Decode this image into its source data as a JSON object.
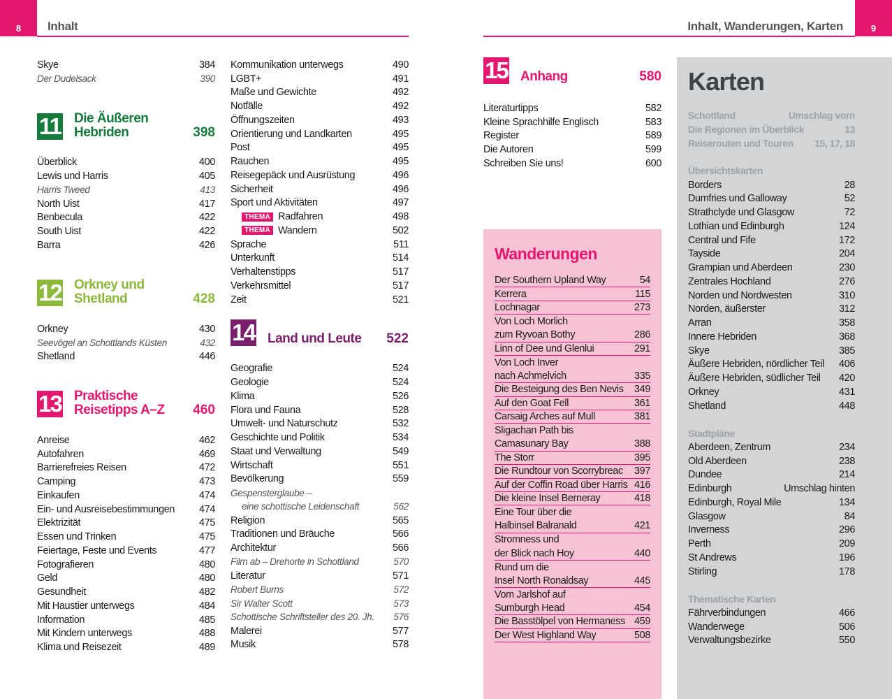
{
  "header": {
    "left_page": "8",
    "left_title": "Inhalt",
    "right_title": "Inhalt, Wanderungen, Karten",
    "right_page": "9"
  },
  "columns": [
    {
      "blocks": [
        {
          "items": [
            {
              "text": "Skye",
              "page": "384"
            },
            {
              "text": "Der Dudelsack",
              "page": "390",
              "italic": true
            }
          ]
        },
        {
          "number": "11",
          "title": [
            "Die Äußeren",
            "Hebriden"
          ],
          "page": "398",
          "color": "#157a3c"
        },
        {
          "items": [
            {
              "text": "Überblick",
              "page": "400"
            },
            {
              "text": "Lewis und Harris",
              "page": "405"
            },
            {
              "text": "Harris Tweed",
              "page": "413",
              "italic": true
            },
            {
              "text": "North Uist",
              "page": "417"
            },
            {
              "text": "Benbecula",
              "page": "422"
            },
            {
              "text": "South Uist",
              "page": "422"
            },
            {
              "text": "Barra",
              "page": "426"
            }
          ]
        },
        {
          "number": "12",
          "title": [
            "Orkney und",
            "Shetland"
          ],
          "page": "428",
          "color": "#8cb83c"
        },
        {
          "items": [
            {
              "text": "Orkney",
              "page": "430"
            },
            {
              "text": "Seevögel an Schottlands Küsten",
              "page": "432",
              "italic": true
            },
            {
              "text": "Shetland",
              "page": "446"
            }
          ]
        },
        {
          "number": "13",
          "title": [
            "Praktische",
            "Reisetipps A–Z"
          ],
          "page": "460",
          "color": "#e3176d"
        },
        {
          "items": [
            {
              "text": "Anreise",
              "page": "462"
            },
            {
              "text": "Autofahren",
              "page": "469"
            },
            {
              "text": "Barrierefreies Reisen",
              "page": "472"
            },
            {
              "text": "Camping",
              "page": "473"
            },
            {
              "text": "Einkaufen",
              "page": "474"
            },
            {
              "text": "Ein- und Ausreisebestimmungen",
              "page": "474"
            },
            {
              "text": "Elektrizität",
              "page": "475"
            },
            {
              "text": "Essen und Trinken",
              "page": "475"
            },
            {
              "text": "Feiertage, Feste und Events",
              "page": "477"
            },
            {
              "text": "Fotografieren",
              "page": "480"
            },
            {
              "text": "Geld",
              "page": "480"
            },
            {
              "text": "Gesundheit",
              "page": "482"
            },
            {
              "text": "Mit Haustier unterwegs",
              "page": "484"
            },
            {
              "text": "Information",
              "page": "485"
            },
            {
              "text": "Mit Kindern unterwegs",
              "page": "488"
            },
            {
              "text": "Klima und Reisezeit",
              "page": "489"
            }
          ]
        }
      ]
    },
    {
      "blocks": [
        {
          "items": [
            {
              "text": "Kommunikation unterwegs",
              "page": "490"
            },
            {
              "text": "LGBT+",
              "page": "491"
            },
            {
              "text": "Maße und Gewichte",
              "page": "492"
            },
            {
              "text": "Notfälle",
              "page": "492"
            },
            {
              "text": "Öffnungszeiten",
              "page": "493"
            },
            {
              "text": "Orientierung und Landkarten",
              "page": "495"
            },
            {
              "text": "Post",
              "page": "495"
            },
            {
              "text": "Rauchen",
              "page": "495"
            },
            {
              "text": "Reisegepäck und Ausrüstung",
              "page": "496"
            },
            {
              "text": "Sicherheit",
              "page": "496"
            },
            {
              "text": "Sport und Aktivitäten",
              "page": "497"
            },
            {
              "badge": "THEMA",
              "text": "Radfahren",
              "page": "498"
            },
            {
              "badge": "THEMA",
              "text": "Wandern",
              "page": "502"
            },
            {
              "text": "Sprache",
              "page": "511"
            },
            {
              "text": "Unterkunft",
              "page": "514"
            },
            {
              "text": "Verhaltenstipps",
              "page": "517"
            },
            {
              "text": "Verkehrsmittel",
              "page": "517"
            },
            {
              "text": "Zeit",
              "page": "521"
            }
          ]
        },
        {
          "number": "14",
          "title": [
            "Land und Leute"
          ],
          "page": "522",
          "color": "#7a1f6d"
        },
        {
          "items": [
            {
              "text": "Geografie",
              "page": "524"
            },
            {
              "text": "Geologie",
              "page": "524"
            },
            {
              "text": "Klima",
              "page": "526"
            },
            {
              "text": "Flora und Fauna",
              "page": "528"
            },
            {
              "text": "Umwelt- und Naturschutz",
              "page": "532"
            },
            {
              "text": "Geschichte und Politik",
              "page": "534"
            },
            {
              "text": "Staat und Verwaltung",
              "page": "549"
            },
            {
              "text": "Wirtschaft",
              "page": "551"
            },
            {
              "text": "Bevölkerung",
              "page": "559"
            },
            {
              "lines": [
                "Gespensterglaube –",
                "eine schottische Leidenschaft"
              ],
              "page": "562",
              "italic": true
            },
            {
              "text": "Religion",
              "page": "565"
            },
            {
              "text": "Traditionen und Bräuche",
              "page": "566"
            },
            {
              "text": "Architektur",
              "page": "566"
            },
            {
              "text": "Film ab – Drehorte in Schottland",
              "page": "570",
              "italic": true
            },
            {
              "text": "Literatur",
              "page": "571"
            },
            {
              "text": "Robert Burns",
              "page": "572",
              "italic": true
            },
            {
              "text": "Sir Walter Scott",
              "page": "573",
              "italic": true
            },
            {
              "text": "Schottische Schriftsteller des 20. Jh.",
              "page": "576",
              "italic": true
            },
            {
              "text": "Malerei",
              "page": "577"
            },
            {
              "text": "Musik",
              "page": "578"
            }
          ]
        }
      ]
    },
    {
      "blocks": [
        {
          "number": "15",
          "title": [
            "Anhang"
          ],
          "page": "580",
          "color": "#e3176d"
        },
        {
          "items": [
            {
              "text": "Literaturtipps",
              "page": "582"
            },
            {
              "text": "Kleine Sprachhilfe Englisch",
              "page": "583"
            },
            {
              "text": "Register",
              "page": "589"
            },
            {
              "text": "Die Autoren",
              "page": "599"
            },
            {
              "text": "Schreiben Sie uns!",
              "page": "600"
            }
          ]
        }
      ]
    }
  ],
  "walks": {
    "title": "Wanderungen",
    "items": [
      {
        "text": "Der Southern Upland Way",
        "page": "54"
      },
      {
        "text": "Kerrera",
        "page": "115"
      },
      {
        "text": "Lochnagar",
        "page": "273"
      },
      {
        "lines": [
          "Von Loch Morlich",
          "zum Ryvoan Bothy"
        ],
        "page": "286"
      },
      {
        "text": "Linn of Dee und Glenlui",
        "page": "291"
      },
      {
        "lines": [
          "Von Loch Inver",
          "nach Achmelvich"
        ],
        "page": "335"
      },
      {
        "text": "Die Besteigung des Ben Nevis",
        "page": "349"
      },
      {
        "text": "Auf den Goat Fell",
        "page": "361"
      },
      {
        "text": "Carsaig Arches auf Mull",
        "page": "381"
      },
      {
        "lines": [
          "Sligachan Path bis",
          "Camasunary Bay"
        ],
        "page": "388"
      },
      {
        "text": "The Storr",
        "page": "395"
      },
      {
        "text": "Die Rundtour von Scorrybreac",
        "page": "397"
      },
      {
        "text": "Auf der Coffin Road über Harris",
        "page": "416"
      },
      {
        "text": "Die kleine Insel Berneray",
        "page": "418"
      },
      {
        "lines": [
          "Eine Tour über die",
          "Halbinsel Balranald"
        ],
        "page": "421"
      },
      {
        "lines": [
          "Stromness und",
          "der Blick nach Hoy"
        ],
        "page": "440"
      },
      {
        "lines": [
          "Rund um die",
          "Insel North Ronaldsay"
        ],
        "page": "445"
      },
      {
        "lines": [
          "Vom Jarlshof auf",
          "Sumburgh Head"
        ],
        "page": "454"
      },
      {
        "text": "Die Basstölpel von Hermaness",
        "page": "459"
      },
      {
        "text": "Der West Highland Way",
        "page": "508"
      }
    ]
  },
  "maps": {
    "title": "Karten",
    "groups": [
      {
        "muted": true,
        "items": [
          {
            "text": "Schottland",
            "page": "Umschlag vorn"
          },
          {
            "text": "Die Regionen im Überblick",
            "page": "13"
          },
          {
            "text": "Reiserouten und Touren",
            "page": "15, 17, 18"
          }
        ]
      },
      {
        "heading": "Übersichtskarten",
        "items": [
          {
            "text": "Borders",
            "page": "28"
          },
          {
            "text": "Dumfries und Galloway",
            "page": "52"
          },
          {
            "text": "Strathclyde und Glasgow",
            "page": "72"
          },
          {
            "text": "Lothian und Edinburgh",
            "page": "124"
          },
          {
            "text": "Central und Fife",
            "page": "172"
          },
          {
            "text": "Tayside",
            "page": "204"
          },
          {
            "text": "Grampian und Aberdeen",
            "page": "230"
          },
          {
            "text": "Zentrales Hochland",
            "page": "276"
          },
          {
            "text": "Norden und Nordwesten",
            "page": "310"
          },
          {
            "text": "Norden, äußerster",
            "page": "312"
          },
          {
            "text": "Arran",
            "page": "358"
          },
          {
            "text": "Innere Hebriden",
            "page": "368"
          },
          {
            "text": "Skye",
            "page": "385"
          },
          {
            "text": "Äußere Hebriden, nördlicher Teil",
            "page": "406"
          },
          {
            "text": "Äußere Hebriden, südlicher Teil",
            "page": "420"
          },
          {
            "text": "Orkney",
            "page": "431"
          },
          {
            "text": "Shetland",
            "page": "448"
          }
        ]
      },
      {
        "heading": "Stadtpläne",
        "items": [
          {
            "text": "Aberdeen, Zentrum",
            "page": "234"
          },
          {
            "text": "Old Aberdeen",
            "page": "238"
          },
          {
            "text": "Dundee",
            "page": "214"
          },
          {
            "text": "Edinburgh",
            "page": "Umschlag hinten"
          },
          {
            "text": "Edinburgh, Royal Mile",
            "page": "134"
          },
          {
            "text": "Glasgow",
            "page": "84"
          },
          {
            "text": "Inverness",
            "page": "296"
          },
          {
            "text": "Perth",
            "page": "209"
          },
          {
            "text": "St Andrews",
            "page": "196"
          },
          {
            "text": "Stirling",
            "page": "178"
          }
        ]
      },
      {
        "heading": "Thematische Karten",
        "items": [
          {
            "text": "Fährverbindungen",
            "page": "466"
          },
          {
            "text": "Wanderwege",
            "page": "506"
          },
          {
            "text": "Verwaltungsbezirke",
            "page": "550"
          }
        ]
      }
    ]
  }
}
